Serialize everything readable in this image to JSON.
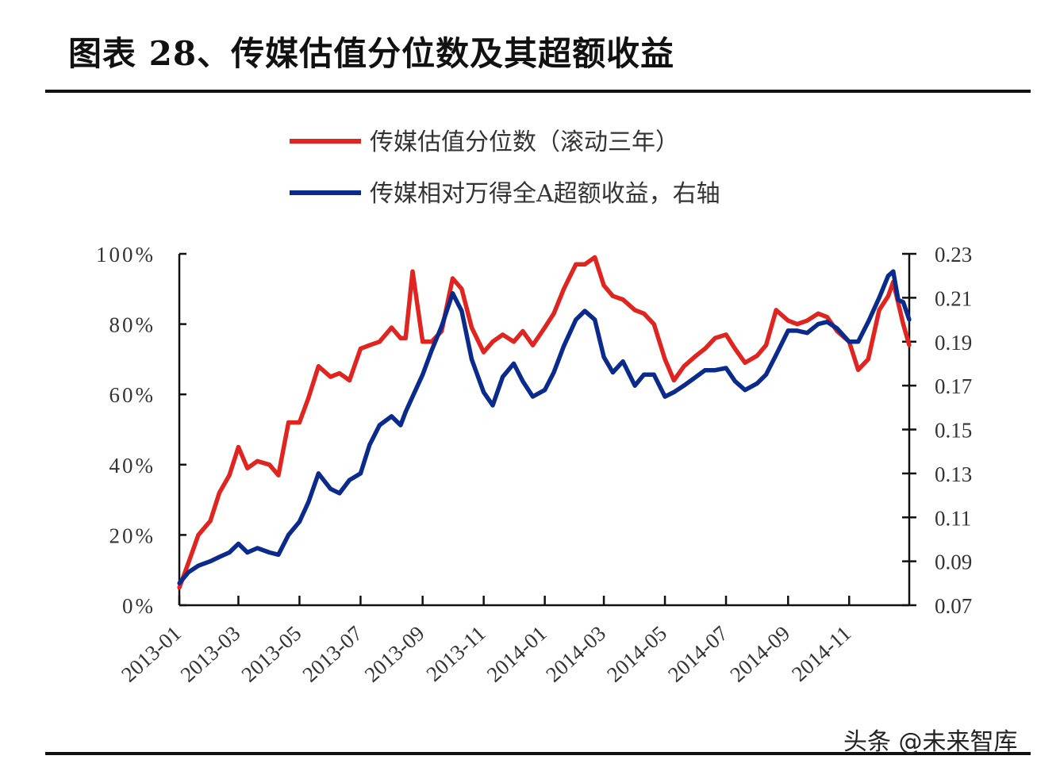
{
  "title": "图表 28、传媒估值分位数及其超额收益",
  "watermark": "头条 @未来智库",
  "colors": {
    "red": "#e02420",
    "blue": "#0a2a8c"
  },
  "chart_data": {
    "type": "line",
    "title": "图表 28、传媒估值分位数及其超额收益",
    "legend_position": "top",
    "grid": false,
    "xlim": [
      "2013-01-01",
      "2014-12-31"
    ],
    "x_ticks": [
      "2013-01",
      "2013-03",
      "2013-05",
      "2013-07",
      "2013-09",
      "2013-11",
      "2014-01",
      "2014-03",
      "2014-05",
      "2014-07",
      "2014-09",
      "2014-11"
    ],
    "y_left": {
      "lim": [
        0,
        100
      ],
      "ticks": [
        "0%",
        "20%",
        "40%",
        "60%",
        "80%",
        "100%"
      ],
      "tick_values": [
        0,
        20,
        40,
        60,
        80,
        100
      ]
    },
    "y_right": {
      "lim": [
        0.07,
        0.23
      ],
      "ticks": [
        "0.07",
        "0.09",
        "0.11",
        "0.13",
        "0.15",
        "0.17",
        "0.19",
        "0.21",
        "0.23"
      ],
      "tick_values": [
        0.07,
        0.09,
        0.11,
        0.13,
        0.15,
        0.17,
        0.19,
        0.21,
        0.23
      ]
    },
    "x": [
      "2013-01-01",
      "2013-01-10",
      "2013-01-20",
      "2013-02-01",
      "2013-02-10",
      "2013-02-20",
      "2013-03-01",
      "2013-03-10",
      "2013-03-20",
      "2013-04-01",
      "2013-04-10",
      "2013-04-20",
      "2013-05-01",
      "2013-05-10",
      "2013-05-20",
      "2013-06-01",
      "2013-06-10",
      "2013-06-20",
      "2013-07-01",
      "2013-07-10",
      "2013-07-20",
      "2013-08-01",
      "2013-08-10",
      "2013-08-15",
      "2013-08-22",
      "2013-09-01",
      "2013-09-10",
      "2013-09-20",
      "2013-10-01",
      "2013-10-10",
      "2013-10-20",
      "2013-11-01",
      "2013-11-10",
      "2013-11-20",
      "2013-12-01",
      "2013-12-10",
      "2013-12-20",
      "2014-01-01",
      "2014-01-10",
      "2014-01-20",
      "2014-02-01",
      "2014-02-10",
      "2014-02-20",
      "2014-03-01",
      "2014-03-10",
      "2014-03-20",
      "2014-04-01",
      "2014-04-10",
      "2014-04-20",
      "2014-05-01",
      "2014-05-10",
      "2014-05-20",
      "2014-06-01",
      "2014-06-10",
      "2014-06-20",
      "2014-07-01",
      "2014-07-10",
      "2014-07-20",
      "2014-08-01",
      "2014-08-10",
      "2014-08-20",
      "2014-09-01",
      "2014-09-10",
      "2014-09-20",
      "2014-10-01",
      "2014-10-10",
      "2014-10-20",
      "2014-11-01",
      "2014-11-10",
      "2014-11-20",
      "2014-12-01",
      "2014-12-10",
      "2014-12-15",
      "2014-12-20",
      "2014-12-25",
      "2014-12-31"
    ],
    "series": [
      {
        "name": "传媒估值分位数（滚动三年）",
        "axis": "left",
        "color": "#e02420",
        "values": [
          5,
          12,
          20,
          24,
          32,
          37,
          45,
          39,
          41,
          40,
          37,
          52,
          52,
          59,
          68,
          65,
          66,
          64,
          73,
          74,
          75,
          79,
          76,
          76,
          95,
          75,
          75,
          78,
          93,
          90,
          79,
          72,
          75,
          77,
          75,
          78,
          74,
          79,
          83,
          90,
          97,
          97,
          99,
          91,
          88,
          87,
          84,
          83,
          80,
          70,
          64,
          68,
          71,
          73,
          76,
          77,
          73,
          69,
          71,
          74,
          84,
          81,
          80,
          81,
          83,
          82,
          78,
          75,
          67,
          70,
          84,
          88,
          92,
          86,
          80,
          74
        ]
      },
      {
        "name": "传媒相对万得全A超额收益，右轴",
        "axis": "right",
        "color": "#0a2a8c",
        "values": [
          0.08,
          0.085,
          0.088,
          0.09,
          0.092,
          0.094,
          0.098,
          0.094,
          0.096,
          0.094,
          0.093,
          0.102,
          0.108,
          0.117,
          0.13,
          0.123,
          0.121,
          0.127,
          0.13,
          0.143,
          0.152,
          0.156,
          0.152,
          0.158,
          0.165,
          0.175,
          0.186,
          0.197,
          0.212,
          0.204,
          0.182,
          0.167,
          0.161,
          0.174,
          0.18,
          0.172,
          0.165,
          0.168,
          0.176,
          0.188,
          0.2,
          0.204,
          0.2,
          0.183,
          0.176,
          0.181,
          0.17,
          0.175,
          0.175,
          0.165,
          0.167,
          0.17,
          0.174,
          0.177,
          0.177,
          0.178,
          0.172,
          0.168,
          0.171,
          0.175,
          0.184,
          0.195,
          0.195,
          0.194,
          0.198,
          0.199,
          0.196,
          0.19,
          0.19,
          0.199,
          0.21,
          0.22,
          0.222,
          0.209,
          0.208,
          0.2
        ]
      }
    ]
  }
}
